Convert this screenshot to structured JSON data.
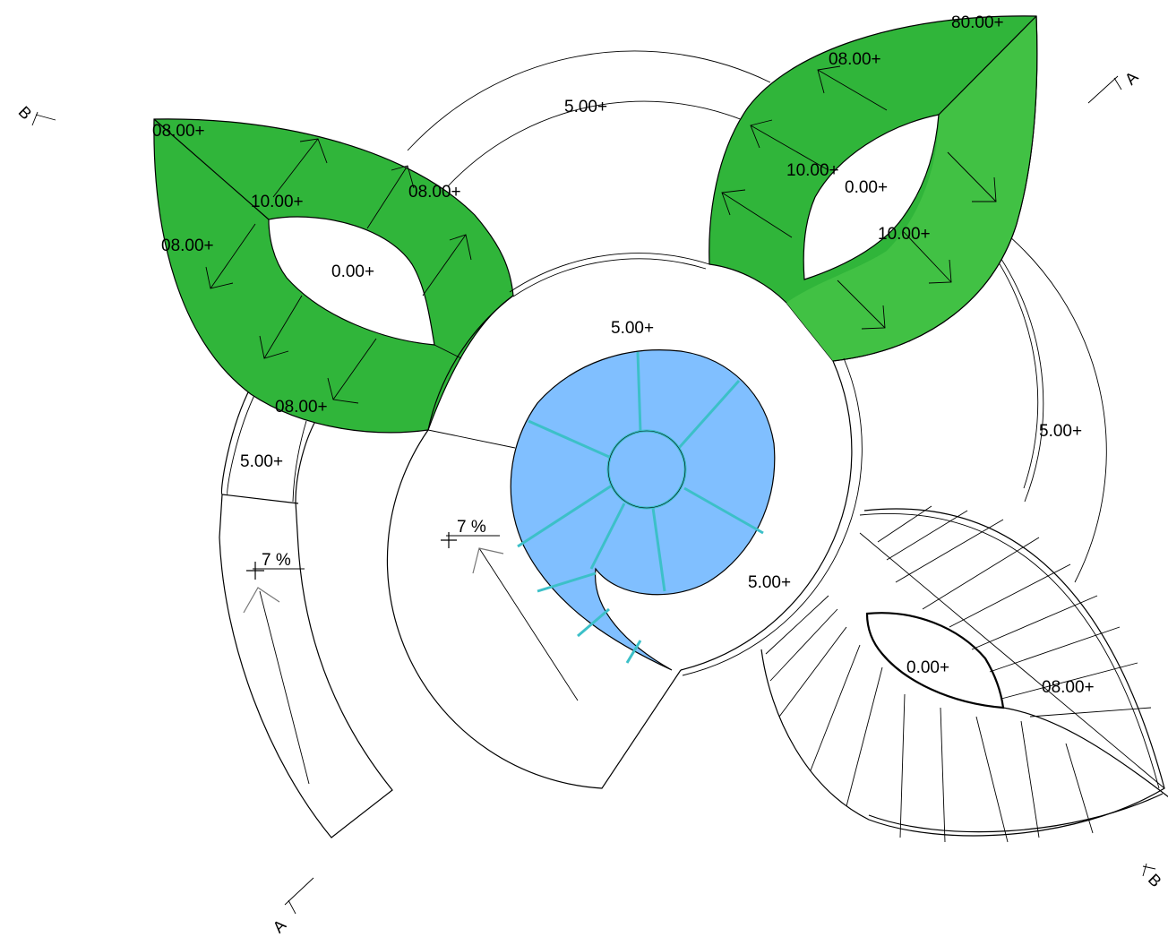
{
  "colors": {
    "leaf_green": "#30b53a",
    "leaf_green_light": "#41c144",
    "water_blue": "#80bfff",
    "water_grid": "#3cc0c8",
    "line": "#000000"
  },
  "section_marks": {
    "a_top": "A",
    "a_bottom": "A",
    "b_top": "B",
    "b_bottom": "B"
  },
  "left_leaf": {
    "levels": [
      "08.00+",
      "10.00+",
      "08.00+",
      "08.00+",
      "08.00+"
    ],
    "opening_level": "0.00+"
  },
  "right_leaf": {
    "levels": [
      "80.00+",
      "08.00+",
      "10.00+",
      "10.00+"
    ],
    "opening_level": "0.00+"
  },
  "outer_ring": {
    "top_level": "5.00+",
    "right_level": "5.00+"
  },
  "left_ramp": {
    "level": "5.00+",
    "slope": "7 %"
  },
  "center": {
    "top_level": "5.00+",
    "bottom_level": "5.00+",
    "ramp_slope": "7 %"
  },
  "grid_leaf": {
    "opening_level": "0.00+",
    "level": "08.00+"
  }
}
